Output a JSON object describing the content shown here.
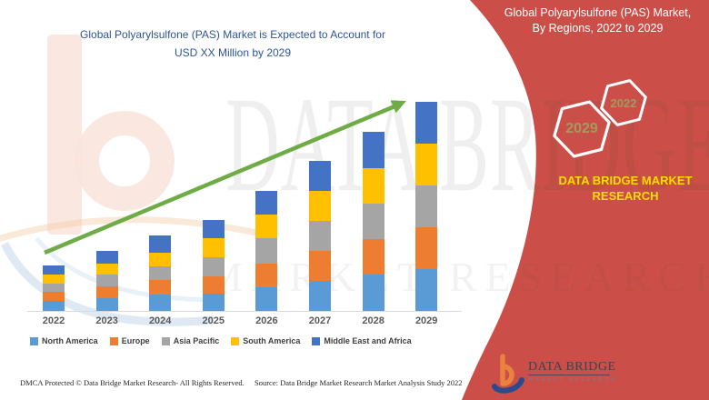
{
  "left_panel": {
    "title_line1": "Global Polyarylsulfone (PAS) Market is Expected to Account for",
    "title_line2": "USD XX Million by 2029",
    "title_color": "#2F5496"
  },
  "chart_data": {
    "type": "bar",
    "stacked": true,
    "title": "Global Polyarylsulfone (PAS) Market is Expected to Account for USD XX Million by 2029",
    "xlabel": "",
    "ylabel": "",
    "value_note": "axis unlabeled (USD XX Million); values are relative units read from bar pixel heights",
    "grid": false,
    "legend_position": "bottom",
    "trend_arrow_color": "#6FAC46",
    "axis_line_color": "#d9d9d9",
    "categories": [
      "2022",
      "2023",
      "2024",
      "2025",
      "2026",
      "2027",
      "2028",
      "2029"
    ],
    "series": [
      {
        "name": "North America",
        "color": "#5B9BD5",
        "values": [
          11,
          14,
          18,
          19,
          26,
          33,
          40,
          46
        ]
      },
      {
        "name": "Europe",
        "color": "#ED7D31",
        "values": [
          10,
          13,
          16,
          19,
          26,
          33,
          39,
          46
        ]
      },
      {
        "name": "Asia Pacific",
        "color": "#A5A5A5",
        "values": [
          9,
          13,
          15,
          21,
          28,
          33,
          39,
          46
        ]
      },
      {
        "name": "South America",
        "color": "#FFC000",
        "values": [
          10,
          12,
          15,
          21,
          26,
          33,
          39,
          46
        ]
      },
      {
        "name": "Middle East and Africa",
        "color": "#4472C4",
        "values": [
          10,
          14,
          19,
          20,
          26,
          33,
          40,
          46
        ]
      }
    ],
    "totals": [
      50,
      66,
      83,
      100,
      132,
      165,
      197,
      230
    ]
  },
  "right_panel": {
    "background_color": "#CB4F48",
    "title_line1": "Global Polyarylsulfone (PAS) Market,",
    "title_line2": "By Regions, 2022 to 2029",
    "hexagon_large_label": "2029",
    "hexagon_small_label": "2022",
    "hexagon_label_color": "#A39A5F",
    "brand_line1": "DATA BRIDGE MARKET",
    "brand_line2": "RESEARCH",
    "brand_color": "#FFDF00"
  },
  "logo": {
    "title": "DATA BRIDGE",
    "subtitle": "MARKET RESEARCH"
  },
  "watermark": {
    "line1": "DATA BRIDGE",
    "line2": "MARKET RESEARCH"
  },
  "footer": {
    "dmca": "DMCA Protected © Data Bridge Market Research- All Rights Reserved.",
    "source": "Source: Data Bridge Market Research Market Analysis Study 2022"
  }
}
